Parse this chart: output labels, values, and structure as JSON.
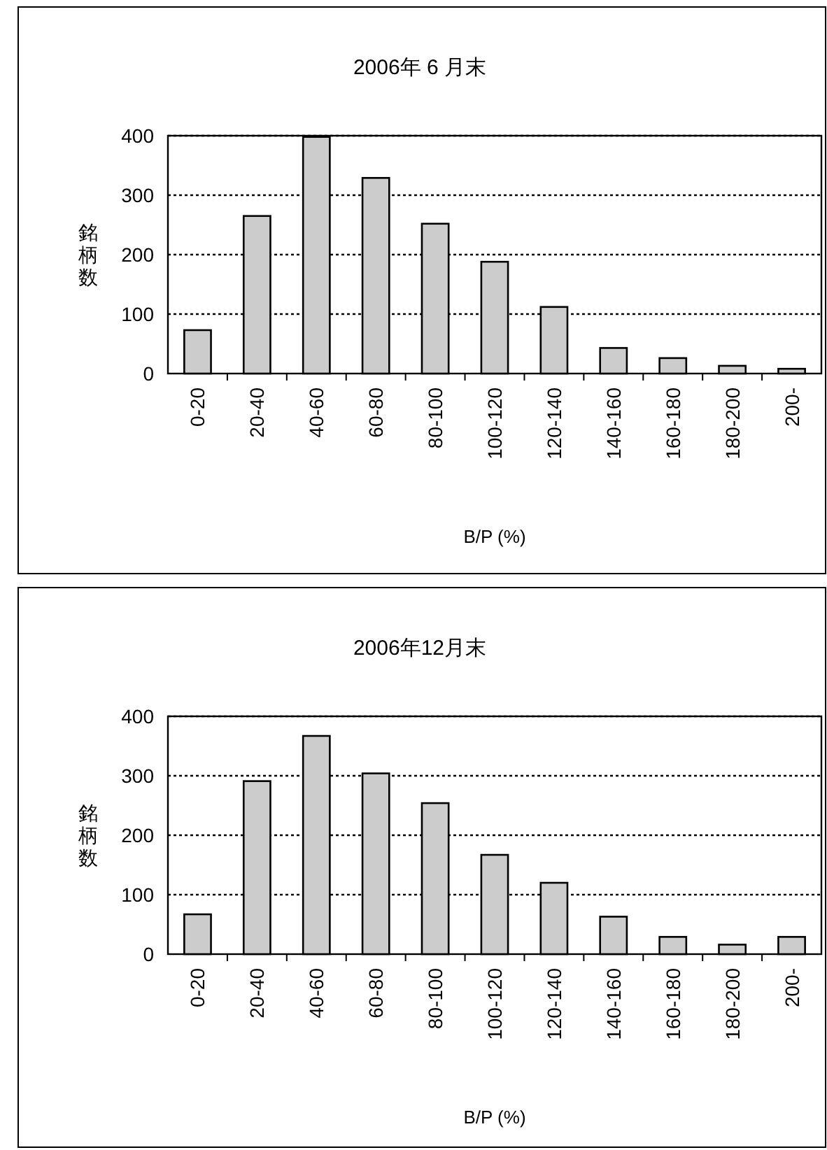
{
  "chart_data": [
    {
      "type": "bar",
      "title": "2006年 6 月末",
      "xlabel": "B/P (%)",
      "ylabel": "銘柄数",
      "categories": [
        "0-20",
        "20-40",
        "40-60",
        "60-80",
        "80-100",
        "100-120",
        "120-140",
        "140-160",
        "160-180",
        "180-200",
        "200-"
      ],
      "values": [
        73,
        265,
        398,
        329,
        252,
        188,
        112,
        43,
        26,
        13,
        8
      ],
      "color": "#cccccc",
      "ylim": [
        0,
        400
      ],
      "yticks": [
        0,
        100,
        200,
        300,
        400
      ],
      "grid": "y"
    },
    {
      "type": "bar",
      "title": "2006年12月末",
      "xlabel": "B/P (%)",
      "ylabel": "銘柄数",
      "categories": [
        "0-20",
        "20-40",
        "40-60",
        "60-80",
        "80-100",
        "100-120",
        "120-140",
        "140-160",
        "160-180",
        "180-200",
        "200-"
      ],
      "values": [
        67,
        291,
        367,
        304,
        254,
        167,
        120,
        63,
        29,
        16,
        29
      ],
      "color": "#cccccc",
      "ylim": [
        0,
        400
      ],
      "yticks": [
        0,
        100,
        200,
        300,
        400
      ],
      "grid": "y"
    }
  ]
}
